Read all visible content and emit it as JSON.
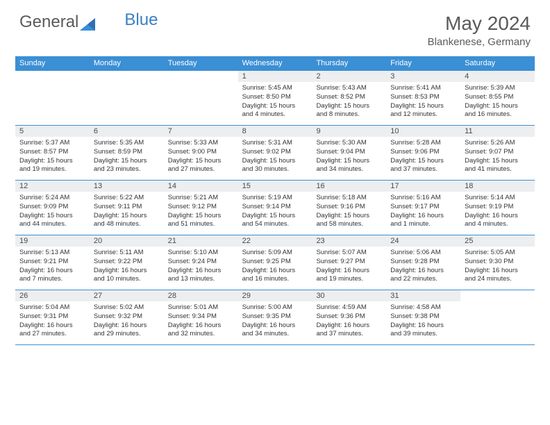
{
  "brand": {
    "part1": "General",
    "part2": "Blue"
  },
  "title": "May 2024",
  "location": "Blankenese, Germany",
  "colors": {
    "header_bg": "#3b8fd4",
    "border": "#3b8fd4",
    "daynum_bg": "#eceef0",
    "text": "#333333",
    "title_text": "#5a5a5a"
  },
  "day_labels": [
    "Sunday",
    "Monday",
    "Tuesday",
    "Wednesday",
    "Thursday",
    "Friday",
    "Saturday"
  ],
  "weeks": [
    [
      {
        "empty": true
      },
      {
        "empty": true
      },
      {
        "empty": true
      },
      {
        "num": "1",
        "sunrise": "Sunrise: 5:45 AM",
        "sunset": "Sunset: 8:50 PM",
        "daylight": "Daylight: 15 hours and 4 minutes."
      },
      {
        "num": "2",
        "sunrise": "Sunrise: 5:43 AM",
        "sunset": "Sunset: 8:52 PM",
        "daylight": "Daylight: 15 hours and 8 minutes."
      },
      {
        "num": "3",
        "sunrise": "Sunrise: 5:41 AM",
        "sunset": "Sunset: 8:53 PM",
        "daylight": "Daylight: 15 hours and 12 minutes."
      },
      {
        "num": "4",
        "sunrise": "Sunrise: 5:39 AM",
        "sunset": "Sunset: 8:55 PM",
        "daylight": "Daylight: 15 hours and 16 minutes."
      }
    ],
    [
      {
        "num": "5",
        "sunrise": "Sunrise: 5:37 AM",
        "sunset": "Sunset: 8:57 PM",
        "daylight": "Daylight: 15 hours and 19 minutes."
      },
      {
        "num": "6",
        "sunrise": "Sunrise: 5:35 AM",
        "sunset": "Sunset: 8:59 PM",
        "daylight": "Daylight: 15 hours and 23 minutes."
      },
      {
        "num": "7",
        "sunrise": "Sunrise: 5:33 AM",
        "sunset": "Sunset: 9:00 PM",
        "daylight": "Daylight: 15 hours and 27 minutes."
      },
      {
        "num": "8",
        "sunrise": "Sunrise: 5:31 AM",
        "sunset": "Sunset: 9:02 PM",
        "daylight": "Daylight: 15 hours and 30 minutes."
      },
      {
        "num": "9",
        "sunrise": "Sunrise: 5:30 AM",
        "sunset": "Sunset: 9:04 PM",
        "daylight": "Daylight: 15 hours and 34 minutes."
      },
      {
        "num": "10",
        "sunrise": "Sunrise: 5:28 AM",
        "sunset": "Sunset: 9:06 PM",
        "daylight": "Daylight: 15 hours and 37 minutes."
      },
      {
        "num": "11",
        "sunrise": "Sunrise: 5:26 AM",
        "sunset": "Sunset: 9:07 PM",
        "daylight": "Daylight: 15 hours and 41 minutes."
      }
    ],
    [
      {
        "num": "12",
        "sunrise": "Sunrise: 5:24 AM",
        "sunset": "Sunset: 9:09 PM",
        "daylight": "Daylight: 15 hours and 44 minutes."
      },
      {
        "num": "13",
        "sunrise": "Sunrise: 5:22 AM",
        "sunset": "Sunset: 9:11 PM",
        "daylight": "Daylight: 15 hours and 48 minutes."
      },
      {
        "num": "14",
        "sunrise": "Sunrise: 5:21 AM",
        "sunset": "Sunset: 9:12 PM",
        "daylight": "Daylight: 15 hours and 51 minutes."
      },
      {
        "num": "15",
        "sunrise": "Sunrise: 5:19 AM",
        "sunset": "Sunset: 9:14 PM",
        "daylight": "Daylight: 15 hours and 54 minutes."
      },
      {
        "num": "16",
        "sunrise": "Sunrise: 5:18 AM",
        "sunset": "Sunset: 9:16 PM",
        "daylight": "Daylight: 15 hours and 58 minutes."
      },
      {
        "num": "17",
        "sunrise": "Sunrise: 5:16 AM",
        "sunset": "Sunset: 9:17 PM",
        "daylight": "Daylight: 16 hours and 1 minute."
      },
      {
        "num": "18",
        "sunrise": "Sunrise: 5:14 AM",
        "sunset": "Sunset: 9:19 PM",
        "daylight": "Daylight: 16 hours and 4 minutes."
      }
    ],
    [
      {
        "num": "19",
        "sunrise": "Sunrise: 5:13 AM",
        "sunset": "Sunset: 9:21 PM",
        "daylight": "Daylight: 16 hours and 7 minutes."
      },
      {
        "num": "20",
        "sunrise": "Sunrise: 5:11 AM",
        "sunset": "Sunset: 9:22 PM",
        "daylight": "Daylight: 16 hours and 10 minutes."
      },
      {
        "num": "21",
        "sunrise": "Sunrise: 5:10 AM",
        "sunset": "Sunset: 9:24 PM",
        "daylight": "Daylight: 16 hours and 13 minutes."
      },
      {
        "num": "22",
        "sunrise": "Sunrise: 5:09 AM",
        "sunset": "Sunset: 9:25 PM",
        "daylight": "Daylight: 16 hours and 16 minutes."
      },
      {
        "num": "23",
        "sunrise": "Sunrise: 5:07 AM",
        "sunset": "Sunset: 9:27 PM",
        "daylight": "Daylight: 16 hours and 19 minutes."
      },
      {
        "num": "24",
        "sunrise": "Sunrise: 5:06 AM",
        "sunset": "Sunset: 9:28 PM",
        "daylight": "Daylight: 16 hours and 22 minutes."
      },
      {
        "num": "25",
        "sunrise": "Sunrise: 5:05 AM",
        "sunset": "Sunset: 9:30 PM",
        "daylight": "Daylight: 16 hours and 24 minutes."
      }
    ],
    [
      {
        "num": "26",
        "sunrise": "Sunrise: 5:04 AM",
        "sunset": "Sunset: 9:31 PM",
        "daylight": "Daylight: 16 hours and 27 minutes."
      },
      {
        "num": "27",
        "sunrise": "Sunrise: 5:02 AM",
        "sunset": "Sunset: 9:32 PM",
        "daylight": "Daylight: 16 hours and 29 minutes."
      },
      {
        "num": "28",
        "sunrise": "Sunrise: 5:01 AM",
        "sunset": "Sunset: 9:34 PM",
        "daylight": "Daylight: 16 hours and 32 minutes."
      },
      {
        "num": "29",
        "sunrise": "Sunrise: 5:00 AM",
        "sunset": "Sunset: 9:35 PM",
        "daylight": "Daylight: 16 hours and 34 minutes."
      },
      {
        "num": "30",
        "sunrise": "Sunrise: 4:59 AM",
        "sunset": "Sunset: 9:36 PM",
        "daylight": "Daylight: 16 hours and 37 minutes."
      },
      {
        "num": "31",
        "sunrise": "Sunrise: 4:58 AM",
        "sunset": "Sunset: 9:38 PM",
        "daylight": "Daylight: 16 hours and 39 minutes."
      },
      {
        "empty": true
      }
    ]
  ]
}
